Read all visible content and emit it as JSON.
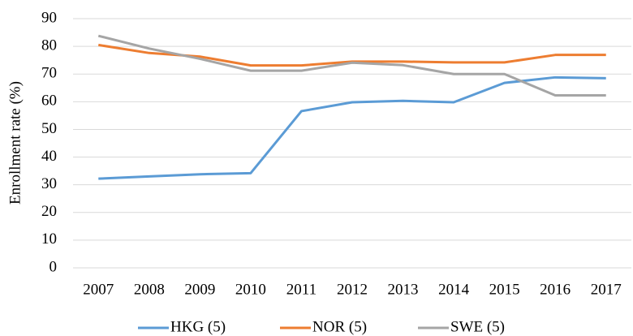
{
  "chart_data": {
    "type": "line",
    "y_label": "Enrollment rate (%)",
    "categories": [
      "2007",
      "2008",
      "2009",
      "2010",
      "2011",
      "2012",
      "2013",
      "2014",
      "2015",
      "2016",
      "2017"
    ],
    "series": [
      {
        "name": "HKG (5)",
        "color": "#5b9bd5",
        "values": [
          32.2,
          33.0,
          33.8,
          34.2,
          56.6,
          59.8,
          60.3,
          59.8,
          66.8,
          68.8,
          68.5
        ]
      },
      {
        "name": "NOR (5)",
        "color": "#ed7d31",
        "values": [
          80.5,
          77.6,
          76.3,
          73.1,
          73.1,
          74.5,
          74.5,
          74.2,
          74.2,
          76.9,
          76.9
        ]
      },
      {
        "name": "SWE (5)",
        "color": "#a5a5a5",
        "values": [
          83.8,
          79.2,
          75.5,
          71.2,
          71.2,
          74.1,
          73.2,
          70.0,
          70.0,
          62.3,
          62.3
        ]
      }
    ],
    "ylim": [
      0,
      90
    ],
    "yticks": [
      0,
      10,
      20,
      30,
      40,
      50,
      60,
      70,
      80,
      90
    ],
    "grid": true,
    "legend": "bottom"
  }
}
